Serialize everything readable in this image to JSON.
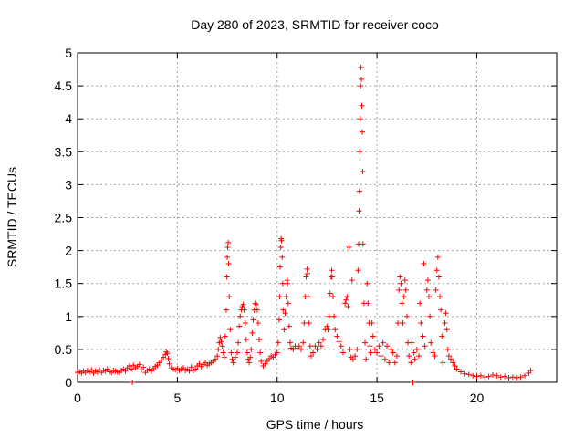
{
  "chart_data": {
    "type": "scatter",
    "title": "Day 280 of 2023, SRMTID for receiver coco",
    "xlabel": "GPS time / hours",
    "ylabel": "SRMTID / TECUs",
    "xlim": [
      0,
      24
    ],
    "ylim": [
      0,
      5
    ],
    "x_ticks": [
      0,
      5,
      10,
      15,
      20
    ],
    "x_tick_labels": [
      "0",
      "5",
      "10",
      "15",
      "20"
    ],
    "y_ticks": [
      0,
      0.5,
      1,
      1.5,
      2,
      2.5,
      3,
      3.5,
      4,
      4.5,
      5
    ],
    "y_tick_labels": [
      "0",
      "0.5",
      "1",
      "1.5",
      "2",
      "2.5",
      "3",
      "3.5",
      "4",
      "4.5",
      "5"
    ],
    "grid": true,
    "marker": "+",
    "series": [
      {
        "name": "SRMTID",
        "color": "#ff0000",
        "points": [
          [
            0.0,
            0.15
          ],
          [
            0.1,
            0.16
          ],
          [
            0.2,
            0.14
          ],
          [
            0.3,
            0.17
          ],
          [
            0.4,
            0.15
          ],
          [
            0.5,
            0.18
          ],
          [
            0.6,
            0.16
          ],
          [
            0.7,
            0.19
          ],
          [
            0.8,
            0.14
          ],
          [
            0.9,
            0.17
          ],
          [
            1.0,
            0.16
          ],
          [
            1.1,
            0.19
          ],
          [
            1.2,
            0.15
          ],
          [
            1.3,
            0.18
          ],
          [
            1.4,
            0.17
          ],
          [
            1.5,
            0.2
          ],
          [
            1.6,
            0.16
          ],
          [
            1.7,
            0.15
          ],
          [
            1.8,
            0.18
          ],
          [
            1.9,
            0.17
          ],
          [
            2.0,
            0.16
          ],
          [
            2.1,
            0.15
          ],
          [
            2.2,
            0.18
          ],
          [
            2.3,
            0.2
          ],
          [
            2.4,
            0.17
          ],
          [
            2.5,
            0.22
          ],
          [
            2.6,
            0.25
          ],
          [
            2.7,
            0.2
          ],
          [
            2.75,
            0.0
          ],
          [
            2.8,
            0.26
          ],
          [
            2.9,
            0.22
          ],
          [
            3.0,
            0.24
          ],
          [
            3.1,
            0.27
          ],
          [
            3.2,
            0.19
          ],
          [
            3.3,
            0.23
          ],
          [
            3.4,
            0.15
          ],
          [
            3.5,
            0.18
          ],
          [
            3.6,
            0.2
          ],
          [
            3.7,
            0.17
          ],
          [
            3.8,
            0.21
          ],
          [
            3.9,
            0.24
          ],
          [
            4.0,
            0.26
          ],
          [
            4.1,
            0.3
          ],
          [
            4.2,
            0.34
          ],
          [
            4.3,
            0.38
          ],
          [
            4.4,
            0.42
          ],
          [
            4.45,
            0.46
          ],
          [
            4.5,
            0.44
          ],
          [
            4.55,
            0.36
          ],
          [
            4.6,
            0.28
          ],
          [
            4.7,
            0.22
          ],
          [
            4.8,
            0.2
          ],
          [
            4.9,
            0.19
          ],
          [
            5.0,
            0.21
          ],
          [
            5.1,
            0.18
          ],
          [
            5.2,
            0.2
          ],
          [
            5.3,
            0.22
          ],
          [
            5.4,
            0.18
          ],
          [
            5.5,
            0.2
          ],
          [
            5.6,
            0.17
          ],
          [
            5.7,
            0.23
          ],
          [
            5.8,
            0.18
          ],
          [
            5.9,
            0.2
          ],
          [
            6.0,
            0.25
          ],
          [
            6.1,
            0.28
          ],
          [
            6.2,
            0.24
          ],
          [
            6.3,
            0.27
          ],
          [
            6.4,
            0.3
          ],
          [
            6.5,
            0.26
          ],
          [
            6.6,
            0.28
          ],
          [
            6.7,
            0.3
          ],
          [
            6.8,
            0.32
          ],
          [
            6.9,
            0.35
          ],
          [
            7.0,
            0.4
          ],
          [
            7.05,
            0.5
          ],
          [
            7.1,
            0.6
          ],
          [
            7.15,
            0.68
          ],
          [
            7.2,
            0.62
          ],
          [
            7.25,
            0.55
          ],
          [
            7.3,
            0.45
          ],
          [
            7.35,
            0.38
          ],
          [
            7.4,
            0.7
          ],
          [
            7.45,
            1.1
          ],
          [
            7.48,
            1.6
          ],
          [
            7.5,
            1.9
          ],
          [
            7.52,
            2.05
          ],
          [
            7.55,
            2.12
          ],
          [
            7.57,
            1.8
          ],
          [
            7.6,
            1.3
          ],
          [
            7.65,
            0.8
          ],
          [
            7.7,
            0.45
          ],
          [
            7.75,
            0.35
          ],
          [
            7.8,
            0.3
          ],
          [
            7.9,
            0.38
          ],
          [
            8.0,
            0.45
          ],
          [
            8.05,
            0.6
          ],
          [
            8.1,
            0.85
          ],
          [
            8.15,
            1.0
          ],
          [
            8.2,
            1.1
          ],
          [
            8.25,
            1.15
          ],
          [
            8.3,
            1.18
          ],
          [
            8.35,
            1.1
          ],
          [
            8.4,
            0.9
          ],
          [
            8.45,
            0.65
          ],
          [
            8.5,
            0.45
          ],
          [
            8.55,
            0.35
          ],
          [
            8.6,
            0.3
          ],
          [
            8.65,
            0.38
          ],
          [
            8.7,
            0.5
          ],
          [
            8.75,
            0.75
          ],
          [
            8.8,
            0.95
          ],
          [
            8.85,
            1.1
          ],
          [
            8.9,
            1.2
          ],
          [
            8.95,
            1.18
          ],
          [
            9.0,
            1.1
          ],
          [
            9.05,
            0.9
          ],
          [
            9.1,
            0.65
          ],
          [
            9.15,
            0.45
          ],
          [
            9.2,
            0.32
          ],
          [
            9.3,
            0.25
          ],
          [
            9.4,
            0.28
          ],
          [
            9.5,
            0.32
          ],
          [
            9.6,
            0.36
          ],
          [
            9.7,
            0.4
          ],
          [
            9.8,
            0.38
          ],
          [
            9.9,
            0.42
          ],
          [
            10.0,
            0.45
          ],
          [
            10.05,
            0.6
          ],
          [
            10.1,
            0.95
          ],
          [
            10.12,
            1.3
          ],
          [
            10.15,
            1.75
          ],
          [
            10.18,
            2.05
          ],
          [
            10.2,
            2.18
          ],
          [
            10.22,
            2.15
          ],
          [
            10.25,
            1.9
          ],
          [
            10.28,
            1.5
          ],
          [
            10.3,
            1.1
          ],
          [
            10.35,
            0.8
          ],
          [
            10.4,
            1.05
          ],
          [
            10.45,
            1.3
          ],
          [
            10.5,
            1.55
          ],
          [
            10.52,
            1.5
          ],
          [
            10.55,
            1.2
          ],
          [
            10.6,
            0.85
          ],
          [
            10.65,
            0.6
          ],
          [
            10.7,
            0.52
          ],
          [
            10.8,
            0.5
          ],
          [
            10.9,
            0.55
          ],
          [
            11.0,
            0.52
          ],
          [
            11.1,
            0.55
          ],
          [
            11.2,
            0.5
          ],
          [
            11.3,
            0.6
          ],
          [
            11.35,
            0.9
          ],
          [
            11.4,
            1.3
          ],
          [
            11.45,
            1.6
          ],
          [
            11.5,
            1.72
          ],
          [
            11.52,
            1.65
          ],
          [
            11.55,
            1.3
          ],
          [
            11.6,
            0.9
          ],
          [
            11.65,
            0.55
          ],
          [
            11.7,
            0.4
          ],
          [
            11.8,
            0.45
          ],
          [
            11.9,
            0.55
          ],
          [
            12.0,
            0.5
          ],
          [
            12.1,
            0.6
          ],
          [
            12.2,
            0.55
          ],
          [
            12.3,
            0.65
          ],
          [
            12.4,
            0.8
          ],
          [
            12.5,
            0.85
          ],
          [
            12.55,
            0.8
          ],
          [
            12.6,
            1.0
          ],
          [
            12.65,
            1.35
          ],
          [
            12.7,
            1.6
          ],
          [
            12.73,
            1.7
          ],
          [
            12.75,
            1.6
          ],
          [
            12.8,
            1.3
          ],
          [
            12.85,
            1.0
          ],
          [
            12.9,
            0.8
          ],
          [
            13.0,
            0.7
          ],
          [
            13.1,
            0.62
          ],
          [
            13.2,
            0.55
          ],
          [
            13.3,
            0.45
          ],
          [
            13.4,
            1.2
          ],
          [
            13.45,
            1.25
          ],
          [
            13.5,
            1.3
          ],
          [
            13.55,
            1.15
          ],
          [
            13.6,
            2.05
          ],
          [
            13.65,
            0.5
          ],
          [
            13.7,
            0.38
          ],
          [
            13.75,
            1.55
          ],
          [
            13.8,
            0.35
          ],
          [
            13.9,
            0.4
          ],
          [
            14.0,
            0.5
          ],
          [
            14.05,
            1.7
          ],
          [
            14.08,
            2.1
          ],
          [
            14.1,
            2.6
          ],
          [
            14.12,
            2.9
          ],
          [
            14.14,
            3.5
          ],
          [
            14.16,
            4.0
          ],
          [
            14.18,
            4.5
          ],
          [
            14.2,
            4.78
          ],
          [
            14.22,
            4.6
          ],
          [
            14.24,
            4.2
          ],
          [
            14.26,
            3.8
          ],
          [
            14.28,
            3.2
          ],
          [
            14.3,
            2.1
          ],
          [
            14.35,
            1.2
          ],
          [
            14.4,
            0.6
          ],
          [
            14.45,
            0.35
          ],
          [
            14.5,
            1.5
          ],
          [
            14.55,
            1.2
          ],
          [
            14.6,
            0.9
          ],
          [
            14.65,
            0.55
          ],
          [
            14.7,
            0.45
          ],
          [
            14.75,
            0.9
          ],
          [
            14.8,
            0.7
          ],
          [
            14.9,
            0.5
          ],
          [
            15.0,
            0.45
          ],
          [
            15.1,
            0.55
          ],
          [
            15.2,
            0.4
          ],
          [
            15.3,
            0.6
          ],
          [
            15.4,
            0.35
          ],
          [
            15.5,
            0.55
          ],
          [
            15.6,
            0.3
          ],
          [
            15.7,
            0.5
          ],
          [
            15.8,
            0.45
          ],
          [
            15.9,
            0.3
          ],
          [
            16.0,
            0.4
          ],
          [
            16.05,
            0.9
          ],
          [
            16.1,
            1.4
          ],
          [
            16.15,
            1.6
          ],
          [
            16.2,
            1.5
          ],
          [
            16.25,
            1.2
          ],
          [
            16.3,
            0.9
          ],
          [
            16.35,
            1.3
          ],
          [
            16.4,
            1.55
          ],
          [
            16.45,
            1.4
          ],
          [
            16.5,
            1.0
          ],
          [
            16.55,
            0.6
          ],
          [
            16.6,
            0.4
          ],
          [
            16.7,
            0.3
          ],
          [
            16.75,
            0.6
          ],
          [
            16.8,
            0.0
          ],
          [
            16.85,
            0.45
          ],
          [
            16.9,
            0.35
          ],
          [
            17.0,
            0.5
          ],
          [
            17.1,
            0.4
          ],
          [
            17.15,
            1.2
          ],
          [
            17.2,
            0.9
          ],
          [
            17.3,
            0.7
          ],
          [
            17.35,
            1.8
          ],
          [
            17.4,
            0.55
          ],
          [
            17.5,
            1.4
          ],
          [
            17.55,
            1.55
          ],
          [
            17.6,
            1.3
          ],
          [
            17.65,
            1.0
          ],
          [
            17.7,
            0.6
          ],
          [
            17.8,
            0.45
          ],
          [
            17.9,
            0.4
          ],
          [
            17.95,
            1.4
          ],
          [
            18.0,
            1.7
          ],
          [
            18.05,
            1.9
          ],
          [
            18.1,
            1.6
          ],
          [
            18.15,
            1.3
          ],
          [
            18.2,
            1.1
          ],
          [
            18.25,
            0.7
          ],
          [
            18.3,
            0.3
          ],
          [
            18.4,
            0.9
          ],
          [
            18.45,
            1.05
          ],
          [
            18.5,
            0.8
          ],
          [
            18.55,
            0.5
          ],
          [
            18.6,
            0.4
          ],
          [
            18.7,
            0.35
          ],
          [
            18.8,
            0.3
          ],
          [
            18.9,
            0.25
          ],
          [
            19.0,
            0.2
          ],
          [
            19.2,
            0.16
          ],
          [
            19.4,
            0.13
          ],
          [
            19.6,
            0.12
          ],
          [
            19.8,
            0.1
          ],
          [
            20.0,
            0.09
          ],
          [
            20.2,
            0.1
          ],
          [
            20.4,
            0.08
          ],
          [
            20.6,
            0.09
          ],
          [
            20.8,
            0.11
          ],
          [
            21.0,
            0.1
          ],
          [
            21.2,
            0.08
          ],
          [
            21.4,
            0.09
          ],
          [
            21.6,
            0.07
          ],
          [
            21.8,
            0.08
          ],
          [
            22.0,
            0.07
          ],
          [
            22.2,
            0.08
          ],
          [
            22.4,
            0.1
          ],
          [
            22.6,
            0.14
          ],
          [
            22.7,
            0.18
          ]
        ]
      }
    ]
  }
}
